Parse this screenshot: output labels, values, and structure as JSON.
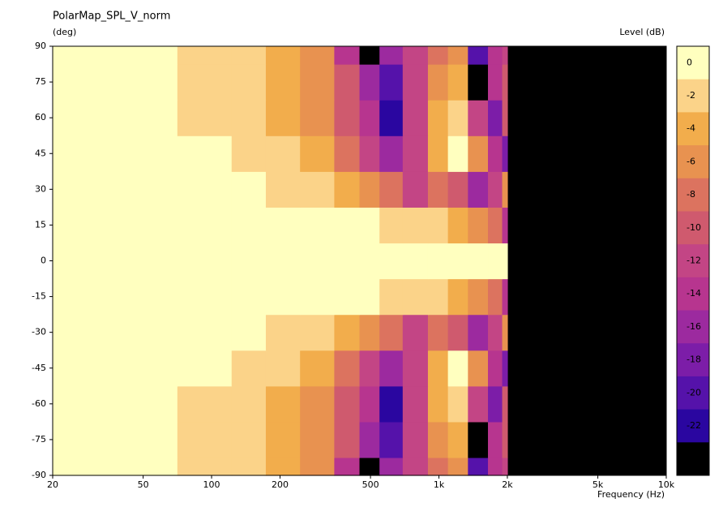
{
  "chart_data": {
    "type": "heatmap",
    "title": "PolarMap_SPL_V_norm",
    "y_label": "(deg)",
    "x_label": "Frequency  (Hz)",
    "colorbar_label": "Level  (dB)",
    "x": [
      20,
      50,
      100,
      150,
      200,
      300,
      400,
      500,
      600,
      800,
      1000,
      1200,
      1500,
      1800,
      2000
    ],
    "y": [
      -90,
      -75,
      -60,
      -45,
      -30,
      -15,
      0,
      15,
      30,
      45,
      60,
      75,
      90
    ],
    "z": [
      [
        0,
        0,
        -2,
        -3,
        -4,
        -7,
        -14,
        -24,
        -16,
        -12,
        -8,
        -6,
        -20,
        -14,
        -12
      ],
      [
        0,
        0,
        -2,
        -3,
        -4,
        -6,
        -10,
        -16,
        -20,
        -12,
        -6,
        -4,
        -24,
        -14,
        -10
      ],
      [
        0,
        0,
        -2,
        -2,
        -4,
        -6,
        -10,
        -14,
        -22,
        -12,
        -4,
        -2,
        -12,
        -18,
        -10
      ],
      [
        0,
        0,
        -1,
        -2,
        -3,
        -5,
        -8,
        -12,
        -16,
        -12,
        -4,
        0,
        -6,
        -14,
        -18
      ],
      [
        0,
        0,
        0,
        -1,
        -2,
        -3,
        -4,
        -6,
        -8,
        -12,
        -8,
        -10,
        -16,
        -12,
        -6
      ],
      [
        0,
        0,
        0,
        0,
        0,
        -1,
        -1,
        -1,
        -2,
        -2,
        -3,
        -4,
        -6,
        -8,
        -14
      ],
      [
        0,
        0,
        0,
        0,
        0,
        0,
        0,
        0,
        0,
        0,
        0,
        0,
        0,
        0,
        0
      ],
      [
        0,
        0,
        0,
        0,
        0,
        -1,
        -1,
        -1,
        -2,
        -2,
        -3,
        -4,
        -6,
        -8,
        -14
      ],
      [
        0,
        0,
        0,
        -1,
        -2,
        -3,
        -4,
        -6,
        -8,
        -12,
        -8,
        -10,
        -16,
        -12,
        -6
      ],
      [
        0,
        0,
        -1,
        -2,
        -3,
        -5,
        -8,
        -12,
        -16,
        -12,
        -4,
        0,
        -6,
        -14,
        -18
      ],
      [
        0,
        0,
        -2,
        -2,
        -4,
        -6,
        -10,
        -14,
        -22,
        -12,
        -4,
        -2,
        -12,
        -18,
        -10
      ],
      [
        0,
        0,
        -2,
        -3,
        -4,
        -6,
        -10,
        -16,
        -20,
        -12,
        -6,
        -4,
        -24,
        -14,
        -10
      ],
      [
        0,
        0,
        -2,
        -3,
        -4,
        -7,
        -14,
        -24,
        -16,
        -12,
        -8,
        -6,
        -20,
        -14,
        -12
      ]
    ],
    "xlim": [
      20,
      10000
    ],
    "xscale": "log",
    "xticks": [
      20,
      50,
      100,
      200,
      500,
      {
        "value": 1000,
        "label": "1k"
      },
      {
        "value": 2000,
        "label": "2k"
      },
      {
        "value": 5000,
        "label": "5k"
      },
      {
        "value": 10000,
        "label": "10k"
      }
    ],
    "ylim": [
      -90,
      90
    ],
    "yticks": [
      90,
      75,
      60,
      45,
      30,
      15,
      0,
      -15,
      -30,
      -45,
      -60,
      -75,
      -90
    ],
    "levels": [
      0,
      -2,
      -4,
      -6,
      -8,
      -10,
      -12,
      -14,
      -16,
      -18,
      -20,
      -22,
      -24
    ],
    "colors": [
      "#ffffbf",
      "#fbd389",
      "#f2ad4c",
      "#e89250",
      "#dc735f",
      "#cf5a6e",
      "#c34585",
      "#b7358f",
      "#9c2a9f",
      "#7c1da8",
      "#5512aa",
      "#2a06a0",
      "#000000"
    ]
  }
}
